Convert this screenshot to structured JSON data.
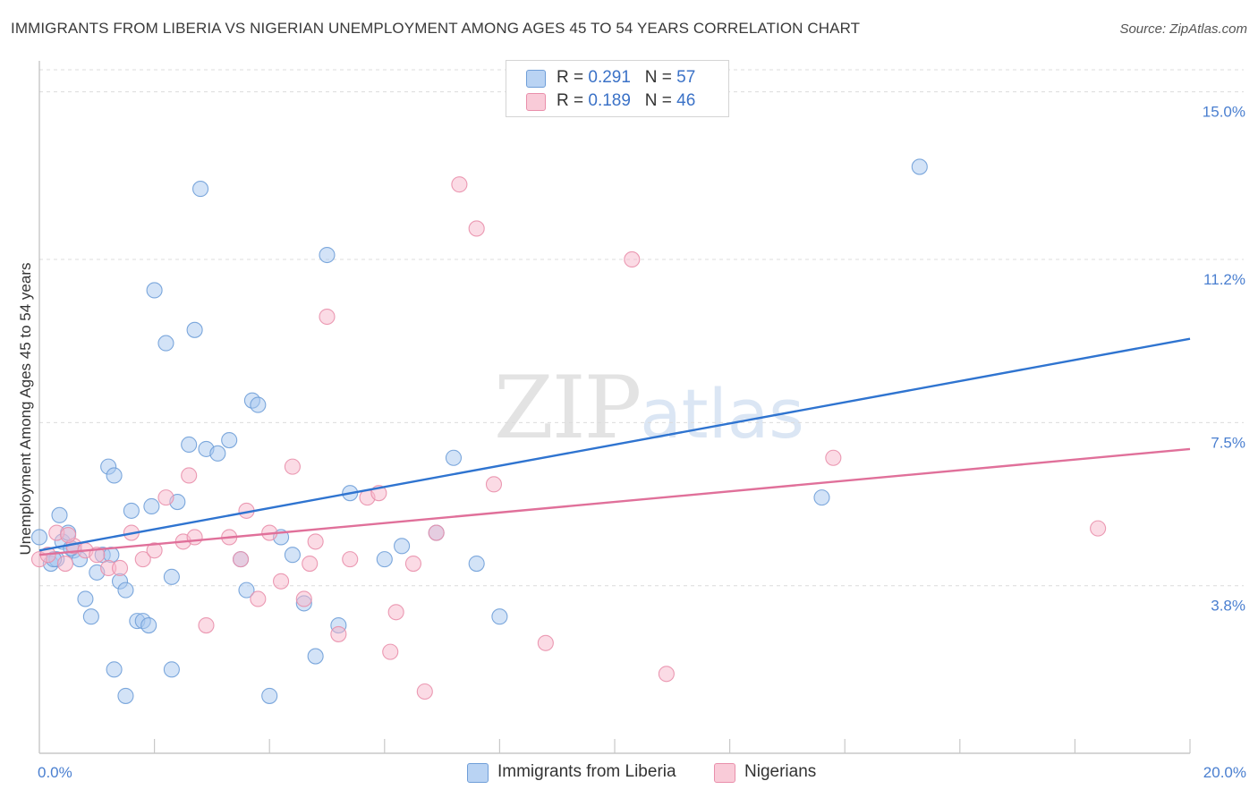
{
  "title": "IMMIGRANTS FROM LIBERIA VS NIGERIAN UNEMPLOYMENT AMONG AGES 45 TO 54 YEARS CORRELATION CHART",
  "source": "Source: ZipAtlas.com",
  "watermark": {
    "zip": "ZIP",
    "atlas": "atlas"
  },
  "legend": {
    "r_label": "R = ",
    "n_label": "N = ",
    "series": [
      {
        "r": "0.291",
        "n": "57"
      },
      {
        "r": "0.189",
        "n": "46"
      }
    ]
  },
  "bottom_legend": [
    "Immigrants from Liberia",
    "Nigerians"
  ],
  "colors": {
    "blue_fill": "#a8c8f0",
    "blue_stroke": "#6f9ed8",
    "blue_line": "#2f74d0",
    "pink_fill": "#f7b8cb",
    "pink_stroke": "#e98fab",
    "pink_line": "#e0709a",
    "axis_text": "#4a7fd0"
  },
  "chart_data": {
    "type": "scatter",
    "title": "IMMIGRANTS FROM LIBERIA VS NIGERIAN UNEMPLOYMENT AMONG AGES 45 TO 54 YEARS CORRELATION CHART",
    "xlabel": "",
    "ylabel": "Unemployment Among Ages 45 to 54 years",
    "xlim": [
      0,
      20
    ],
    "ylim": [
      0,
      15.5
    ],
    "x_tick_labels": [
      "0.0%",
      "20.0%"
    ],
    "y_ticks": [
      3.8,
      7.5,
      11.2,
      15.0
    ],
    "y_tick_labels": [
      "3.8%",
      "7.5%",
      "11.2%",
      "15.0%"
    ],
    "series": [
      {
        "name": "Immigrants from Liberia",
        "r": 0.291,
        "n": 57,
        "trend": {
          "x": [
            0,
            20
          ],
          "y": [
            4.6,
            9.4
          ]
        },
        "points": [
          [
            0.0,
            4.9
          ],
          [
            0.2,
            4.3
          ],
          [
            0.3,
            4.4
          ],
          [
            0.35,
            5.4
          ],
          [
            0.4,
            4.8
          ],
          [
            0.5,
            5.0
          ],
          [
            0.6,
            4.6
          ],
          [
            0.7,
            4.4
          ],
          [
            0.8,
            3.5
          ],
          [
            0.9,
            3.1
          ],
          [
            1.0,
            4.1
          ],
          [
            1.1,
            4.5
          ],
          [
            1.2,
            6.5
          ],
          [
            1.3,
            6.3
          ],
          [
            1.4,
            3.9
          ],
          [
            1.5,
            3.7
          ],
          [
            1.6,
            5.5
          ],
          [
            1.7,
            3.0
          ],
          [
            1.8,
            3.0
          ],
          [
            1.9,
            2.9
          ],
          [
            2.0,
            10.5
          ],
          [
            2.2,
            9.3
          ],
          [
            2.3,
            4.0
          ],
          [
            2.4,
            5.7
          ],
          [
            2.6,
            7.0
          ],
          [
            2.7,
            9.6
          ],
          [
            2.8,
            12.8
          ],
          [
            2.9,
            6.9
          ],
          [
            3.1,
            6.8
          ],
          [
            3.3,
            7.1
          ],
          [
            3.5,
            4.4
          ],
          [
            3.6,
            3.7
          ],
          [
            3.7,
            8.0
          ],
          [
            3.8,
            7.9
          ],
          [
            4.0,
            1.3
          ],
          [
            4.2,
            4.9
          ],
          [
            4.4,
            4.5
          ],
          [
            4.6,
            3.4
          ],
          [
            4.8,
            2.2
          ],
          [
            5.0,
            11.3
          ],
          [
            5.2,
            2.9
          ],
          [
            5.4,
            5.9
          ],
          [
            6.0,
            4.4
          ],
          [
            6.3,
            4.7
          ],
          [
            6.9,
            5.0
          ],
          [
            7.2,
            6.7
          ],
          [
            7.6,
            4.3
          ],
          [
            8.0,
            3.1
          ],
          [
            13.6,
            5.8
          ],
          [
            15.3,
            13.3
          ],
          [
            1.3,
            1.9
          ],
          [
            2.3,
            1.9
          ],
          [
            1.5,
            1.3
          ],
          [
            0.25,
            4.4
          ],
          [
            0.55,
            4.65
          ],
          [
            1.95,
            5.6
          ],
          [
            1.25,
            4.5
          ]
        ]
      },
      {
        "name": "Nigerians",
        "r": 0.189,
        "n": 46,
        "trend": {
          "x": [
            0,
            20
          ],
          "y": [
            4.5,
            6.9
          ]
        },
        "points": [
          [
            0.0,
            4.4
          ],
          [
            0.15,
            4.5
          ],
          [
            0.3,
            5.0
          ],
          [
            0.45,
            4.3
          ],
          [
            0.6,
            4.7
          ],
          [
            0.8,
            4.6
          ],
          [
            1.0,
            4.5
          ],
          [
            1.2,
            4.2
          ],
          [
            1.4,
            4.2
          ],
          [
            1.6,
            5.0
          ],
          [
            1.8,
            4.4
          ],
          [
            2.0,
            4.6
          ],
          [
            2.2,
            5.8
          ],
          [
            2.5,
            4.8
          ],
          [
            2.6,
            6.3
          ],
          [
            2.7,
            4.9
          ],
          [
            2.9,
            2.9
          ],
          [
            3.3,
            4.9
          ],
          [
            3.5,
            4.4
          ],
          [
            3.6,
            5.5
          ],
          [
            3.8,
            3.5
          ],
          [
            4.0,
            5.0
          ],
          [
            4.2,
            3.9
          ],
          [
            4.4,
            6.5
          ],
          [
            4.6,
            3.5
          ],
          [
            4.8,
            4.8
          ],
          [
            5.0,
            9.9
          ],
          [
            5.2,
            2.7
          ],
          [
            5.4,
            4.4
          ],
          [
            5.7,
            5.8
          ],
          [
            5.9,
            5.9
          ],
          [
            6.1,
            2.3
          ],
          [
            6.2,
            3.2
          ],
          [
            6.5,
            4.3
          ],
          [
            6.7,
            1.4
          ],
          [
            6.9,
            5.0
          ],
          [
            7.3,
            12.9
          ],
          [
            7.6,
            11.9
          ],
          [
            7.9,
            6.1
          ],
          [
            8.8,
            2.5
          ],
          [
            10.3,
            11.2
          ],
          [
            10.9,
            1.8
          ],
          [
            13.8,
            6.7
          ],
          [
            18.4,
            5.1
          ],
          [
            0.5,
            4.95
          ],
          [
            4.7,
            4.3
          ]
        ]
      }
    ]
  }
}
